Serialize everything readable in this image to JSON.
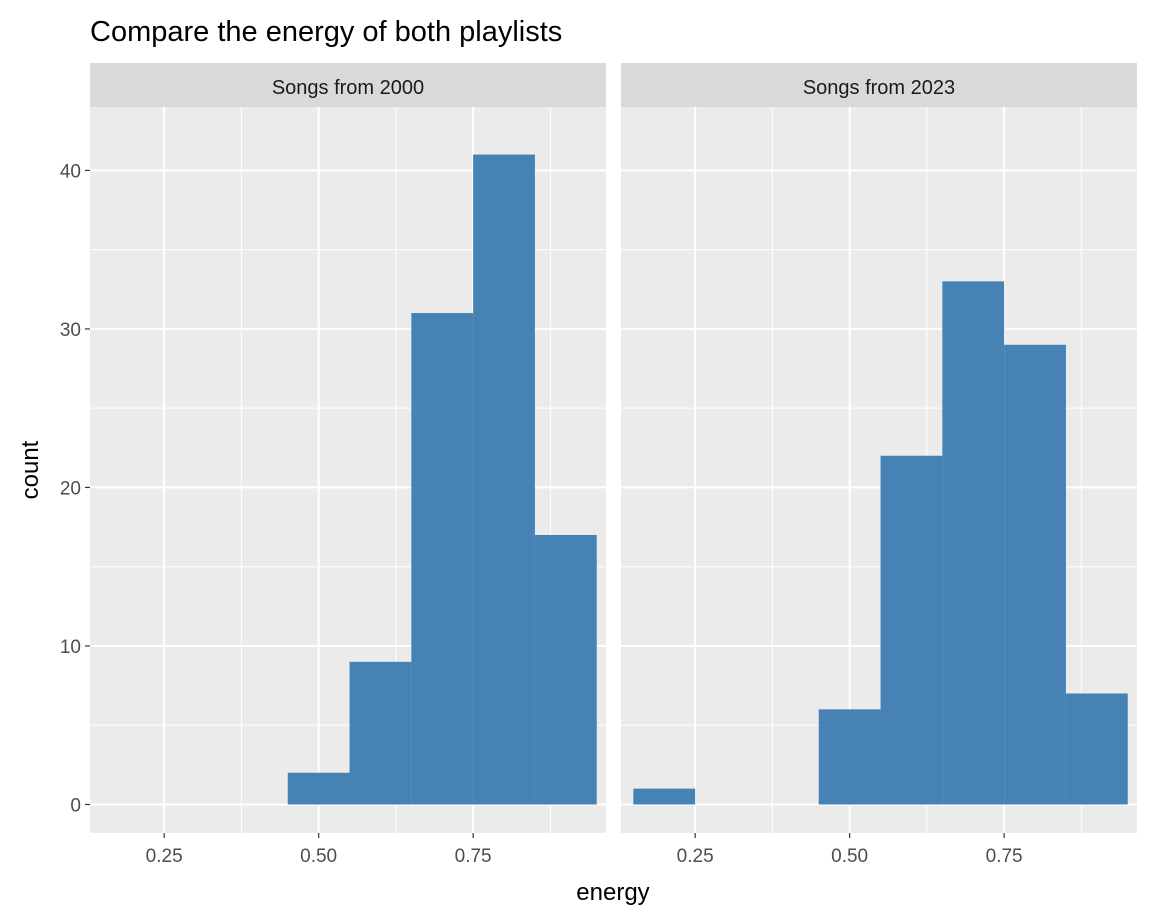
{
  "chart_data": {
    "type": "bar",
    "title": "Compare the energy of both playlists",
    "xlabel": "energy",
    "ylabel": "count",
    "xlim": [
      0.13,
      0.965
    ],
    "ylim": [
      -1.8,
      44
    ],
    "x_ticks": [
      0.25,
      0.5,
      0.75
    ],
    "x_tick_labels": [
      "0.25",
      "0.50",
      "0.75"
    ],
    "y_ticks": [
      0,
      10,
      20,
      30,
      40
    ],
    "y_tick_labels": [
      "0",
      "10",
      "20",
      "30",
      "40"
    ],
    "bin_width": 0.1,
    "grid": true,
    "bar_color": "#4682b4",
    "panel_background": "#ebebeb",
    "strip_background": "#d9d9d9",
    "panels": [
      {
        "name": "Songs from 2000",
        "bin_centers": [
          0.2,
          0.3,
          0.4,
          0.5,
          0.6,
          0.7,
          0.8,
          0.9
        ],
        "values": [
          0,
          0,
          0,
          2,
          9,
          31,
          41,
          17
        ]
      },
      {
        "name": "Songs from 2023",
        "bin_centers": [
          0.2,
          0.3,
          0.4,
          0.5,
          0.6,
          0.7,
          0.8,
          0.9
        ],
        "values": [
          1,
          0,
          0,
          6,
          22,
          33,
          29,
          7
        ]
      }
    ]
  }
}
